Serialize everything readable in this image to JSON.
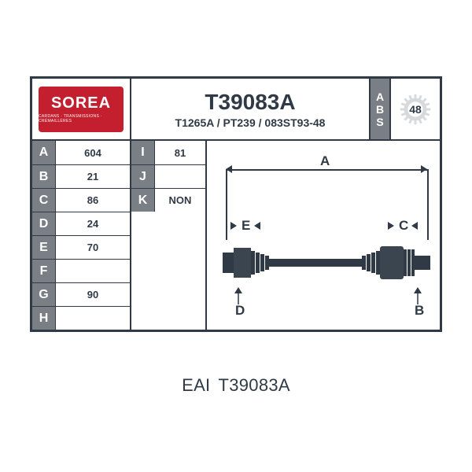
{
  "brand": {
    "name": "SOREA",
    "tagline": "CARDANS · TRANSMISSIONS · CRÉMAILLÈRES"
  },
  "part": {
    "main_ref": "T39083A",
    "alt_refs": "T1265A / PT239 / 083ST93-48",
    "abs_label_chars": [
      "A",
      "B",
      "S"
    ],
    "abs_teeth": "48"
  },
  "specs_left": [
    {
      "k": "A",
      "v": "604"
    },
    {
      "k": "B",
      "v": "21"
    },
    {
      "k": "C",
      "v": "86"
    },
    {
      "k": "D",
      "v": "24"
    },
    {
      "k": "E",
      "v": "70"
    },
    {
      "k": "F",
      "v": ""
    },
    {
      "k": "G",
      "v": "90"
    },
    {
      "k": "H",
      "v": ""
    }
  ],
  "specs_right": [
    {
      "k": "I",
      "v": "81"
    },
    {
      "k": "J",
      "v": ""
    },
    {
      "k": "K",
      "v": "NON"
    }
  ],
  "diagram": {
    "labels": {
      "A": "A",
      "B": "B",
      "C": "C",
      "D": "D",
      "E": "E"
    }
  },
  "caption": {
    "brand": "EAI",
    "ref": "T39083A"
  },
  "colors": {
    "frame": "#2f3a46",
    "header_grey": "#7a7f85",
    "logo_bg": "#c41f2e",
    "white": "#ffffff",
    "gear": "#d7dadd"
  }
}
